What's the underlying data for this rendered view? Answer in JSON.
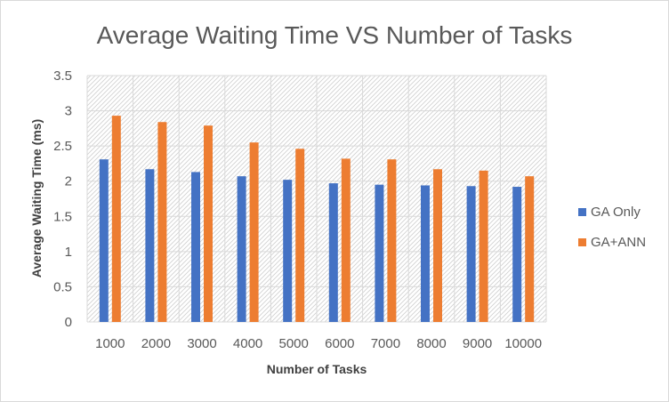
{
  "chart_data": {
    "type": "bar",
    "title": "Average Waiting Time VS Number of Tasks",
    "xlabel": "Number of Tasks",
    "ylabel": "Average Waiting Time (ms)",
    "categories": [
      "1000",
      "2000",
      "3000",
      "4000",
      "5000",
      "6000",
      "7000",
      "8000",
      "9000",
      "10000"
    ],
    "ylim": [
      0,
      3.5
    ],
    "yticks": [
      "0",
      "0.5",
      "1",
      "1.5",
      "2",
      "2.5",
      "3",
      "3.5"
    ],
    "grid": true,
    "legend_position": "right",
    "series": [
      {
        "name": "GA Only",
        "color": "#4472C4",
        "values": [
          2.31,
          2.17,
          2.13,
          2.07,
          2.02,
          1.97,
          1.95,
          1.94,
          1.93,
          1.92
        ]
      },
      {
        "name": "GA+ANN",
        "color": "#ED7D31",
        "values": [
          2.93,
          2.84,
          2.79,
          2.55,
          2.46,
          2.32,
          2.31,
          2.17,
          2.15,
          2.07
        ]
      }
    ]
  }
}
